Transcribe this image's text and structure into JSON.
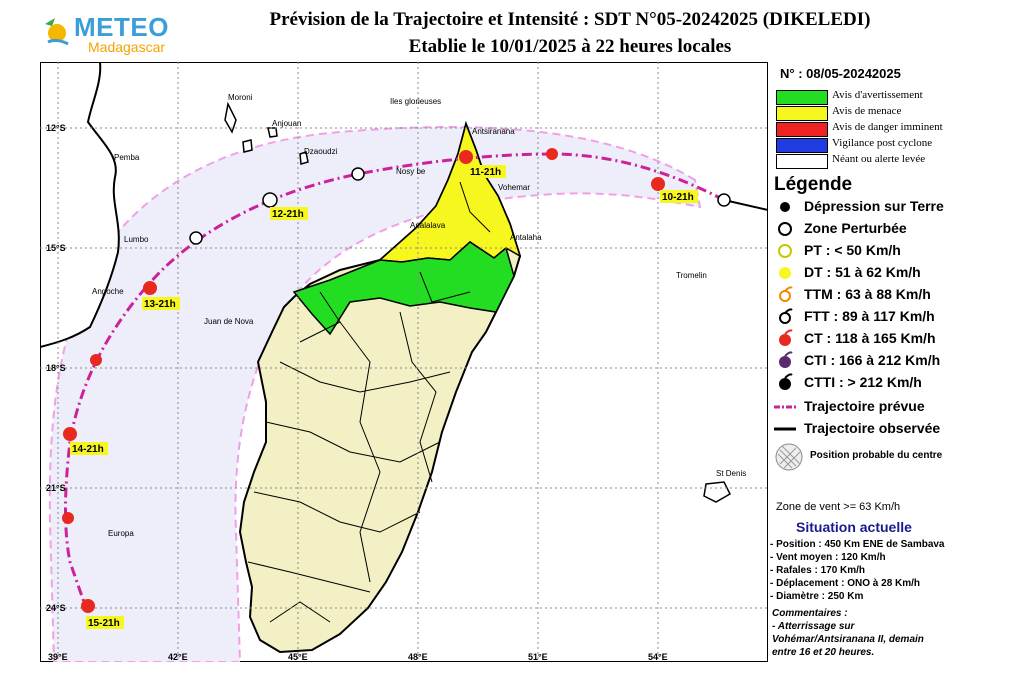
{
  "header": {
    "logo_name": "METEO",
    "logo_sub": "Madagascar",
    "title_line1": "Prévision de la Trajectoire et Intensité : SDT N°05-20242025 (DIKELEDI)",
    "title_line2": "Etablie le 10/01/2025 à 22 heures locales"
  },
  "map": {
    "lat_labels": [
      "12°S",
      "15°S",
      "18°S",
      "21°S",
      "24°S"
    ],
    "lon_labels": [
      "39°E",
      "42°E",
      "45°E",
      "48°E",
      "51°E",
      "54°E"
    ],
    "place_labels": [
      "Moroni",
      "Iles glorieuses",
      "Anjouan",
      "Dzaoudzi",
      "Pemba",
      "Nosy be",
      "Antsiranana",
      "Vohemar",
      "Analalava",
      "Antalaha",
      "Lumbo",
      "Angoche",
      "Juan de Nova",
      "Tromelin",
      "St Denis",
      "Europa"
    ],
    "track_labels": [
      "10-21h",
      "11-21h",
      "12-21h",
      "13-21h",
      "14-21h",
      "15-21h"
    ],
    "colors": {
      "sea": "#f0f0fb",
      "land_mada": "#f2f0c4",
      "warning": "#22dd22",
      "threat": "#f7f720",
      "forecast_track": "#cc2299",
      "cone": "#f0a0e6",
      "cyclone": "#e8291f"
    }
  },
  "panel": {
    "advisory_no": "N° : 08/05-20242025",
    "alerts": [
      {
        "label": "Avis d'avertissement",
        "color": "#22dd22"
      },
      {
        "label": "Avis de menace",
        "color": "#f7f720"
      },
      {
        "label": "Avis de danger imminent",
        "color": "#ee2222"
      },
      {
        "label": "Vigilance post cyclone",
        "color": "#1f3ce0"
      },
      {
        "label": "Néant ou alerte levée",
        "color": "#ffffff"
      }
    ],
    "legend_title": "Légende",
    "legend_items": [
      {
        "label": "Dépression sur Terre",
        "icon": "filled-dot-icon"
      },
      {
        "label": "Zone Perturbée",
        "icon": "open-circle-icon"
      },
      {
        "label": "PT : < 50 Km/h",
        "icon": "yellow-circle-icon"
      },
      {
        "label": "DT : 51 à 62 Km/h",
        "icon": "yellow-dot-icon"
      },
      {
        "label": "TTM : 63 à 88 Km/h",
        "icon": "orange-cyclone-icon"
      },
      {
        "label": "FTT : 89 à 117 Km/h",
        "icon": "black-cyclone-outline-icon"
      },
      {
        "label": "CT : 118 à 165 Km/h",
        "icon": "red-cyclone-icon"
      },
      {
        "label": "CTI : 166 à 212 Km/h",
        "icon": "purple-cyclone-icon"
      },
      {
        "label": "CTTI : > 212 Km/h",
        "icon": "black-cyclone-icon"
      },
      {
        "label": "Trajectoire prévue",
        "icon": "dashdot-line-icon"
      },
      {
        "label": "Trajectoire observée",
        "icon": "solid-line-icon"
      },
      {
        "label": "Position probable du centre",
        "icon": "hatched-circle-icon"
      }
    ],
    "zone_note": "Zone de vent >= 63 Km/h",
    "situation_title": "Situation actuelle",
    "situation_lines": [
      "- Position : 450 Km ENE de Sambava",
      "- Vent moyen : 120 Km/h",
      "- Rafales : 170 Km/h",
      "- Déplacement : ONO à 28 Km/h",
      "- Diamètre : 250 Km"
    ],
    "comments_title": "Commentaires :",
    "comments_lines": [
      "- Atterrissage sur",
      "Vohémar/Antsiranana II, demain",
      "entre 16 et 20 heures."
    ]
  }
}
